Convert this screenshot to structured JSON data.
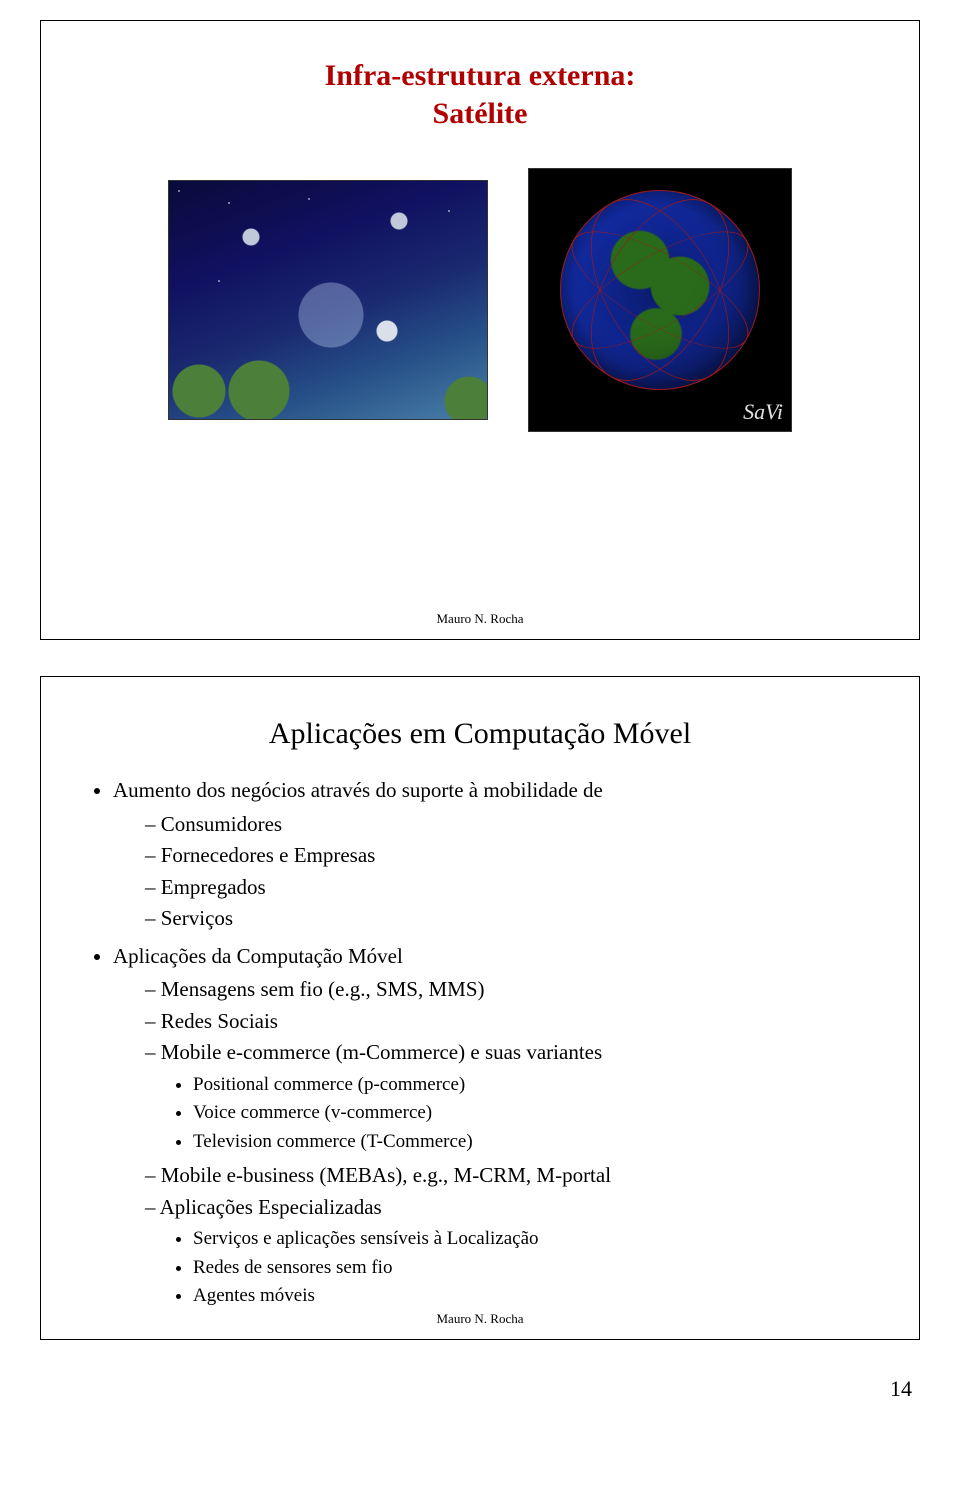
{
  "slide1": {
    "title_line1": "Infra-estrutura externa:",
    "title_line2": "Satélite",
    "savi_label": "SaVi",
    "footer": "Mauro N. Rocha",
    "title_color": "#b00000",
    "left_image_bg_colors": [
      "#0a0a3a",
      "#101060",
      "#1a2a70",
      "#265088",
      "#4a80a8"
    ],
    "right_image_bg": "#000000",
    "globe_land_color": "#2a6a1b",
    "globe_ocean_color": "#122aa0",
    "ring_color": "#a01818"
  },
  "slide2": {
    "title": "Aplicações em Computação Móvel",
    "footer": "Mauro N. Rocha",
    "b1": "Aumento dos negócios através do suporte à mobilidade de",
    "b1_1": "Consumidores",
    "b1_2": "Fornecedores e Empresas",
    "b1_3": "Empregados",
    "b1_4": "Serviços",
    "b2": "Aplicações da Computação Móvel",
    "b2_1": "Mensagens sem fio (e.g., SMS, MMS)",
    "b2_2": "Redes Sociais",
    "b2_3": "Mobile e-commerce (m-Commerce) e suas variantes",
    "b2_3_1": "Positional commerce (p-commerce)",
    "b2_3_2": "Voice commerce (v-commerce)",
    "b2_3_3": "Television commerce (T-Commerce)",
    "b2_4": "Mobile e-business (MEBAs), e.g., M-CRM, M-portal",
    "b2_5": "Aplicações Especializadas",
    "b2_5_1": "Serviços e aplicações sensíveis à Localização",
    "b2_5_2": "Redes de sensores sem fio",
    "b2_5_3": "Agentes móveis"
  },
  "page_number": "14"
}
